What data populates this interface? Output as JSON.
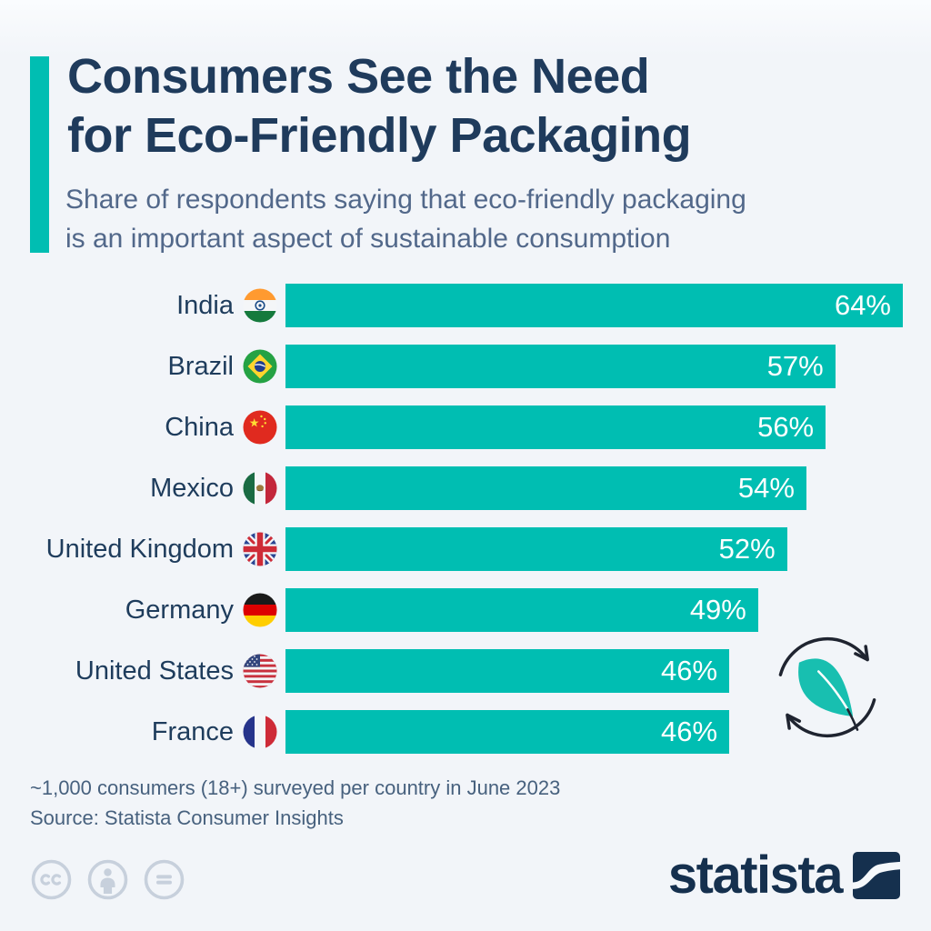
{
  "header": {
    "title_lines": [
      "Consumers See the Need",
      "for Eco-Friendly Packaging"
    ],
    "subtitle_lines": [
      "Share of respondents saying that eco-friendly packaging",
      "is an important aspect of sustainable consumption"
    ]
  },
  "chart_data": {
    "type": "bar",
    "orientation": "horizontal",
    "title": "Consumers See the Need for Eco-Friendly Packaging",
    "subtitle": "Share of respondents saying that eco-friendly packaging is an important aspect of sustainable consumption",
    "categories": [
      "India",
      "Brazil",
      "China",
      "Mexico",
      "United Kingdom",
      "Germany",
      "United States",
      "France"
    ],
    "values": [
      64,
      57,
      56,
      54,
      52,
      49,
      46,
      46
    ],
    "value_labels": [
      "64%",
      "57%",
      "56%",
      "54%",
      "52%",
      "49%",
      "46%",
      "46%"
    ],
    "unit": "%",
    "xlim": [
      0,
      64
    ],
    "grid": false,
    "legend": "none",
    "bar_color": "#00beb2",
    "flag_icons": [
      "flag-india-icon",
      "flag-brazil-icon",
      "flag-china-icon",
      "flag-mexico-icon",
      "flag-united-kingdom-icon",
      "flag-germany-icon",
      "flag-united-states-icon",
      "flag-france-icon"
    ]
  },
  "footer": {
    "note": "~1,000 consumers (18+) surveyed per country in June 2023",
    "source": "Source: Statista Consumer Insights"
  },
  "branding": {
    "logo_text": "statista",
    "license_icons": [
      "creative-commons-icon",
      "attribution-icon",
      "no-derivatives-icon"
    ]
  },
  "decor": {
    "eco_icon": "leaf-recycle-icon"
  },
  "colors": {
    "accent_teal": "#00beb2",
    "title_navy": "#1f3b5c",
    "subtitle_slate": "#52688a",
    "footer_slate": "#47617e",
    "background": "#f2f5f9",
    "value_text": "#ffffff",
    "logo_navy": "#15304e"
  }
}
